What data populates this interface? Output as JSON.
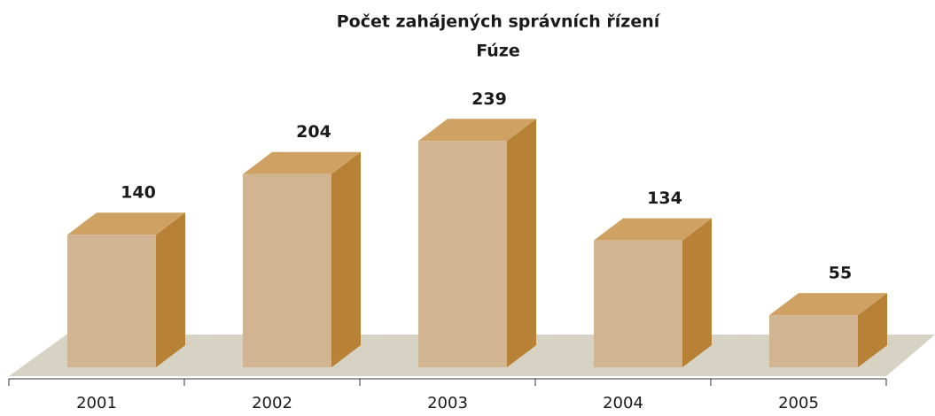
{
  "chart_data": {
    "type": "bar",
    "title": "Počet zahájených správních řízení",
    "subtitle": "Fúze",
    "categories": [
      "2001",
      "2002",
      "2003",
      "2004",
      "2005"
    ],
    "values": [
      140,
      204,
      239,
      134,
      55
    ],
    "color": "#d1b592"
  }
}
